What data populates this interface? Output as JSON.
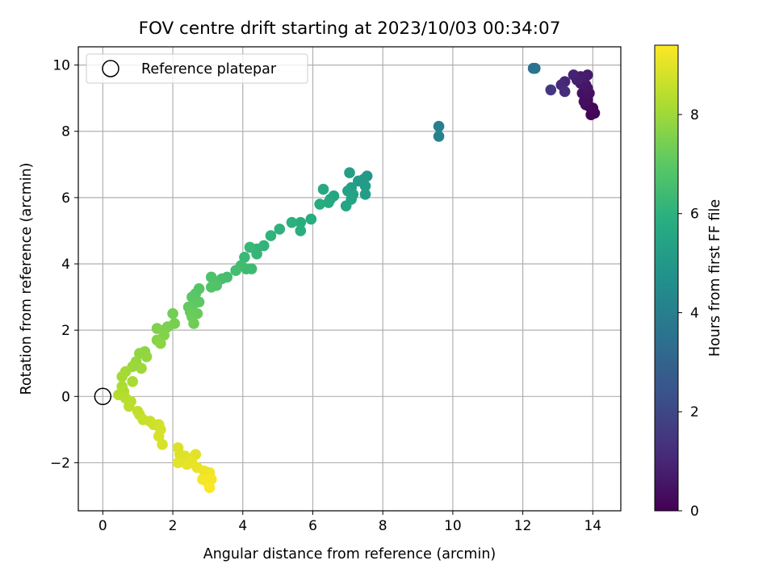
{
  "chart_data": {
    "type": "scatter",
    "title": "FOV centre drift starting at 2023/10/03 00:34:07",
    "xlabel": "Angular distance from reference (arcmin)",
    "ylabel": "Rotation from reference (arcmin)",
    "xlim": [
      -0.7,
      14.8
    ],
    "ylim": [
      -3.45,
      10.55
    ],
    "xticks": [
      0,
      2,
      4,
      6,
      8,
      10,
      12,
      14
    ],
    "yticks": [
      -2,
      0,
      2,
      4,
      6,
      8,
      10
    ],
    "xtick_labels": [
      "0",
      "2",
      "4",
      "6",
      "8",
      "10",
      "12",
      "14"
    ],
    "ytick_labels": [
      "−2",
      "0",
      "2",
      "4",
      "6",
      "8",
      "10"
    ],
    "grid": true,
    "legend": {
      "position": "top-left",
      "label": "Reference platepar"
    },
    "reference_point": {
      "x": 0,
      "y": 0
    },
    "colorbar": {
      "label": "Hours from first FF file",
      "range": [
        0,
        9.4
      ],
      "ticks": [
        0,
        2,
        4,
        6,
        8
      ],
      "tick_labels": [
        "0",
        "2",
        "4",
        "6",
        "8"
      ],
      "colormap": "viridis"
    },
    "points": [
      {
        "x": 14.05,
        "y": 8.55,
        "t": 0.05
      },
      {
        "x": 13.95,
        "y": 8.5,
        "t": 0.1
      },
      {
        "x": 14.0,
        "y": 8.7,
        "t": 0.15
      },
      {
        "x": 13.9,
        "y": 8.75,
        "t": 0.2
      },
      {
        "x": 13.8,
        "y": 8.8,
        "t": 0.25
      },
      {
        "x": 13.85,
        "y": 8.95,
        "t": 0.3
      },
      {
        "x": 13.75,
        "y": 8.9,
        "t": 0.35
      },
      {
        "x": 13.9,
        "y": 9.15,
        "t": 0.4
      },
      {
        "x": 13.7,
        "y": 9.15,
        "t": 0.45
      },
      {
        "x": 13.85,
        "y": 9.3,
        "t": 0.5
      },
      {
        "x": 13.8,
        "y": 9.4,
        "t": 0.55
      },
      {
        "x": 13.65,
        "y": 9.45,
        "t": 0.6
      },
      {
        "x": 13.75,
        "y": 9.6,
        "t": 0.65
      },
      {
        "x": 13.85,
        "y": 9.7,
        "t": 0.7
      },
      {
        "x": 13.65,
        "y": 9.65,
        "t": 0.75
      },
      {
        "x": 13.55,
        "y": 9.55,
        "t": 0.8
      },
      {
        "x": 13.45,
        "y": 9.7,
        "t": 0.9
      },
      {
        "x": 13.2,
        "y": 9.5,
        "t": 1.0
      },
      {
        "x": 13.1,
        "y": 9.4,
        "t": 1.1
      },
      {
        "x": 13.2,
        "y": 9.2,
        "t": 1.2
      },
      {
        "x": 12.8,
        "y": 9.25,
        "t": 1.5
      },
      {
        "x": 12.3,
        "y": 9.9,
        "t": 3.5
      },
      {
        "x": 12.35,
        "y": 9.9,
        "t": 3.55
      },
      {
        "x": 9.6,
        "y": 8.15,
        "t": 4.0
      },
      {
        "x": 9.6,
        "y": 7.85,
        "t": 4.1
      },
      {
        "x": 7.55,
        "y": 6.65,
        "t": 5.0
      },
      {
        "x": 7.45,
        "y": 6.55,
        "t": 5.05
      },
      {
        "x": 7.3,
        "y": 6.5,
        "t": 5.1
      },
      {
        "x": 7.5,
        "y": 6.35,
        "t": 5.15
      },
      {
        "x": 7.5,
        "y": 6.1,
        "t": 5.2
      },
      {
        "x": 7.05,
        "y": 6.75,
        "t": 5.25
      },
      {
        "x": 7.1,
        "y": 6.3,
        "t": 5.3
      },
      {
        "x": 7.0,
        "y": 6.2,
        "t": 5.35
      },
      {
        "x": 7.15,
        "y": 6.1,
        "t": 5.4
      },
      {
        "x": 7.1,
        "y": 5.95,
        "t": 5.45
      },
      {
        "x": 6.95,
        "y": 5.75,
        "t": 5.5
      },
      {
        "x": 6.6,
        "y": 6.05,
        "t": 5.55
      },
      {
        "x": 6.5,
        "y": 5.95,
        "t": 5.6
      },
      {
        "x": 6.3,
        "y": 6.25,
        "t": 5.65
      },
      {
        "x": 6.45,
        "y": 5.85,
        "t": 5.7
      },
      {
        "x": 6.2,
        "y": 5.8,
        "t": 5.75
      },
      {
        "x": 5.95,
        "y": 5.35,
        "t": 5.8
      },
      {
        "x": 5.65,
        "y": 5.25,
        "t": 5.85
      },
      {
        "x": 5.65,
        "y": 5.0,
        "t": 5.9
      },
      {
        "x": 5.4,
        "y": 5.25,
        "t": 5.95
      },
      {
        "x": 5.05,
        "y": 5.05,
        "t": 6.0
      },
      {
        "x": 4.8,
        "y": 4.85,
        "t": 6.05
      },
      {
        "x": 4.6,
        "y": 4.55,
        "t": 6.1
      },
      {
        "x": 4.4,
        "y": 4.45,
        "t": 6.15
      },
      {
        "x": 4.4,
        "y": 4.3,
        "t": 6.2
      },
      {
        "x": 4.2,
        "y": 4.5,
        "t": 6.25
      },
      {
        "x": 4.05,
        "y": 4.2,
        "t": 6.3
      },
      {
        "x": 4.1,
        "y": 3.85,
        "t": 6.35
      },
      {
        "x": 4.25,
        "y": 3.85,
        "t": 6.4
      },
      {
        "x": 3.95,
        "y": 3.95,
        "t": 6.45
      },
      {
        "x": 3.8,
        "y": 3.8,
        "t": 6.5
      },
      {
        "x": 3.55,
        "y": 3.6,
        "t": 6.55
      },
      {
        "x": 3.4,
        "y": 3.55,
        "t": 6.6
      },
      {
        "x": 3.2,
        "y": 3.45,
        "t": 6.65
      },
      {
        "x": 3.1,
        "y": 3.6,
        "t": 6.7
      },
      {
        "x": 3.25,
        "y": 3.35,
        "t": 6.75
      },
      {
        "x": 3.1,
        "y": 3.3,
        "t": 6.8
      },
      {
        "x": 2.75,
        "y": 3.25,
        "t": 6.85
      },
      {
        "x": 2.65,
        "y": 3.1,
        "t": 6.9
      },
      {
        "x": 2.55,
        "y": 3.0,
        "t": 6.95
      },
      {
        "x": 2.75,
        "y": 2.85,
        "t": 7.0
      },
      {
        "x": 2.6,
        "y": 2.8,
        "t": 7.05
      },
      {
        "x": 2.45,
        "y": 2.7,
        "t": 7.1
      },
      {
        "x": 2.5,
        "y": 2.55,
        "t": 7.15
      },
      {
        "x": 2.7,
        "y": 2.5,
        "t": 7.2
      },
      {
        "x": 2.55,
        "y": 2.4,
        "t": 7.25
      },
      {
        "x": 2.6,
        "y": 2.2,
        "t": 7.3
      },
      {
        "x": 2.0,
        "y": 2.5,
        "t": 7.35
      },
      {
        "x": 2.05,
        "y": 2.2,
        "t": 7.4
      },
      {
        "x": 1.85,
        "y": 2.1,
        "t": 7.45
      },
      {
        "x": 1.75,
        "y": 2.0,
        "t": 7.5
      },
      {
        "x": 1.55,
        "y": 2.05,
        "t": 7.55
      },
      {
        "x": 1.75,
        "y": 1.85,
        "t": 7.6
      },
      {
        "x": 1.55,
        "y": 1.7,
        "t": 7.65
      },
      {
        "x": 1.65,
        "y": 1.6,
        "t": 7.7
      },
      {
        "x": 1.2,
        "y": 1.35,
        "t": 7.75
      },
      {
        "x": 1.05,
        "y": 1.3,
        "t": 7.8
      },
      {
        "x": 1.25,
        "y": 1.2,
        "t": 7.85
      },
      {
        "x": 0.95,
        "y": 1.05,
        "t": 7.9
      },
      {
        "x": 0.85,
        "y": 0.9,
        "t": 7.95
      },
      {
        "x": 1.1,
        "y": 0.85,
        "t": 8.0
      },
      {
        "x": 0.65,
        "y": 0.75,
        "t": 8.05
      },
      {
        "x": 0.55,
        "y": 0.6,
        "t": 8.1
      },
      {
        "x": 0.85,
        "y": 0.45,
        "t": 8.15
      },
      {
        "x": 0.55,
        "y": 0.3,
        "t": 8.2
      },
      {
        "x": 0.6,
        "y": 0.15,
        "t": 8.25
      },
      {
        "x": 0.45,
        "y": 0.05,
        "t": 8.3
      },
      {
        "x": 0.65,
        "y": -0.05,
        "t": 8.35
      },
      {
        "x": 0.8,
        "y": -0.15,
        "t": 8.4
      },
      {
        "x": 0.75,
        "y": -0.3,
        "t": 8.45
      },
      {
        "x": 1.0,
        "y": -0.45,
        "t": 8.5
      },
      {
        "x": 1.05,
        "y": -0.55,
        "t": 8.55
      },
      {
        "x": 1.15,
        "y": -0.7,
        "t": 8.6
      },
      {
        "x": 1.35,
        "y": -0.75,
        "t": 8.65
      },
      {
        "x": 1.45,
        "y": -0.85,
        "t": 8.7
      },
      {
        "x": 1.6,
        "y": -0.85,
        "t": 8.75
      },
      {
        "x": 1.65,
        "y": -1.0,
        "t": 8.8
      },
      {
        "x": 1.6,
        "y": -1.2,
        "t": 8.82
      },
      {
        "x": 1.7,
        "y": -1.45,
        "t": 8.85
      },
      {
        "x": 2.15,
        "y": -1.55,
        "t": 8.88
      },
      {
        "x": 2.2,
        "y": -1.75,
        "t": 8.9
      },
      {
        "x": 2.35,
        "y": -1.8,
        "t": 8.95
      },
      {
        "x": 2.65,
        "y": -1.75,
        "t": 9.0
      },
      {
        "x": 2.15,
        "y": -2.0,
        "t": 9.02
      },
      {
        "x": 2.4,
        "y": -2.05,
        "t": 9.05
      },
      {
        "x": 2.55,
        "y": -2.0,
        "t": 9.08
      },
      {
        "x": 2.7,
        "y": -2.15,
        "t": 9.1
      },
      {
        "x": 2.9,
        "y": -2.25,
        "t": 9.15
      },
      {
        "x": 3.05,
        "y": -2.3,
        "t": 9.2
      },
      {
        "x": 2.85,
        "y": -2.5,
        "t": 9.25
      },
      {
        "x": 3.1,
        "y": -2.5,
        "t": 9.3
      },
      {
        "x": 3.0,
        "y": -2.6,
        "t": 9.33
      },
      {
        "x": 3.05,
        "y": -2.75,
        "t": 9.36
      }
    ]
  }
}
